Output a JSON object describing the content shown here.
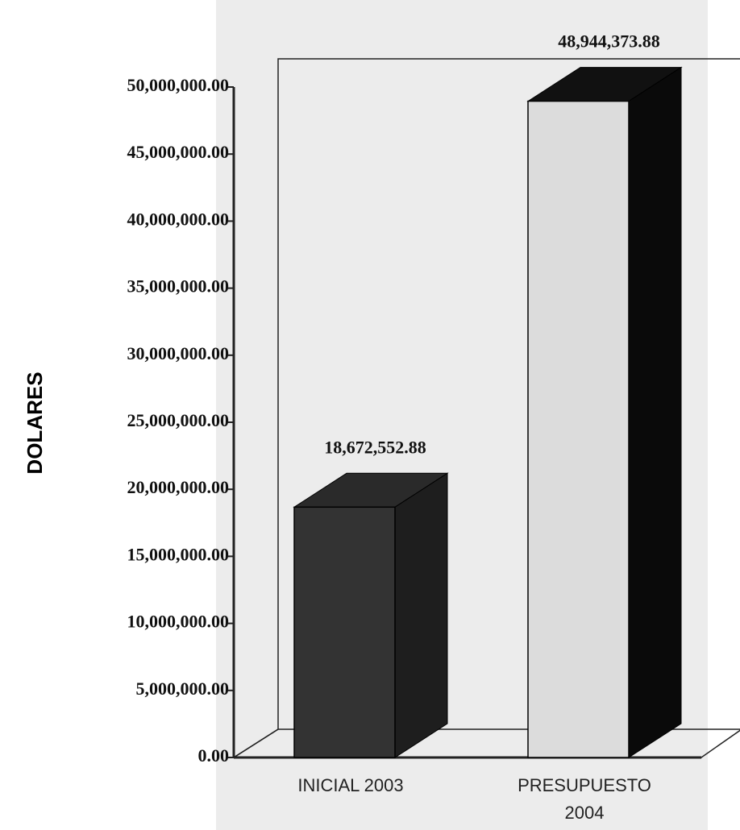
{
  "chart_data": {
    "type": "bar3d",
    "ylabel": "DOLARES",
    "categories": [
      "INICIAL 2003",
      "PRESUPUESTO 2004"
    ],
    "values": [
      18672552.88,
      48944373.88
    ],
    "value_labels": [
      "18,672,552.88",
      "48,944,373.88"
    ],
    "colors": [
      "#333333",
      "#dcdcdc"
    ],
    "ylim": [
      0,
      50000000
    ],
    "yticks": [
      {
        "value": 0,
        "label": "0.00"
      },
      {
        "value": 5000000,
        "label": "5,000,000.00"
      },
      {
        "value": 10000000,
        "label": "10,000,000.00"
      },
      {
        "value": 15000000,
        "label": "15,000,000.00"
      },
      {
        "value": 20000000,
        "label": "20,000,000.00"
      },
      {
        "value": 25000000,
        "label": "25,000,000.00"
      },
      {
        "value": 30000000,
        "label": "30,000,000.00"
      },
      {
        "value": 35000000,
        "label": "35,000,000.00"
      },
      {
        "value": 40000000,
        "label": "40,000,000.00"
      },
      {
        "value": 45000000,
        "label": "45,000,000.00"
      },
      {
        "value": 50000000,
        "label": "50,000,000.00"
      }
    ],
    "grid": false
  }
}
